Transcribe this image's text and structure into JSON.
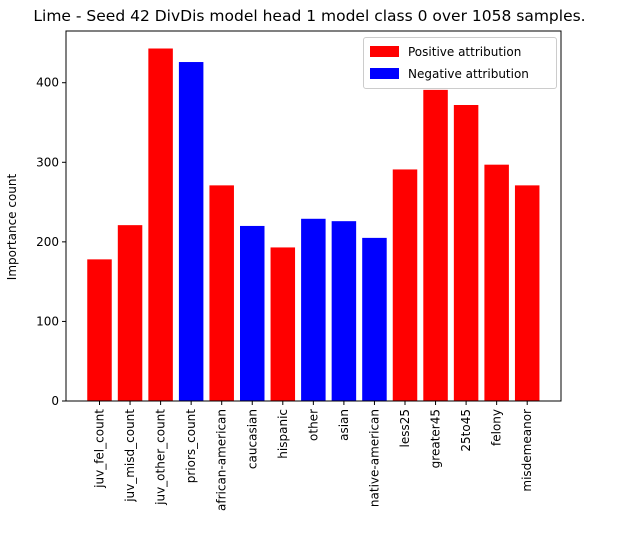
{
  "chart_data": {
    "type": "bar",
    "title": "Lime - Seed 42 DivDis model head 1 model class 0 over 1058 samples.",
    "xlabel": "",
    "ylabel": "Importance count",
    "ylim": [
      0,
      465
    ],
    "yticks": [
      0,
      100,
      200,
      300,
      400
    ],
    "categories": [
      "juv_fel_count",
      "juv_misd_count",
      "juv_other_count",
      "priors_count",
      "african-american",
      "caucasian",
      "hispanic",
      "other",
      "asian",
      "native-american",
      "less25",
      "greater45",
      "25to45",
      "felony",
      "misdemeanor"
    ],
    "values": [
      178,
      221,
      443,
      426,
      271,
      220,
      193,
      229,
      226,
      205,
      291,
      391,
      372,
      297,
      271
    ],
    "attribution": [
      "positive",
      "positive",
      "positive",
      "negative",
      "positive",
      "negative",
      "positive",
      "negative",
      "negative",
      "negative",
      "positive",
      "positive",
      "positive",
      "positive",
      "positive"
    ],
    "legend": [
      {
        "label": "Positive attribution",
        "color": "#ff0000"
      },
      {
        "label": "Negative attribution",
        "color": "#0000ff"
      }
    ],
    "legend_position": "top-right",
    "grid": false
  }
}
